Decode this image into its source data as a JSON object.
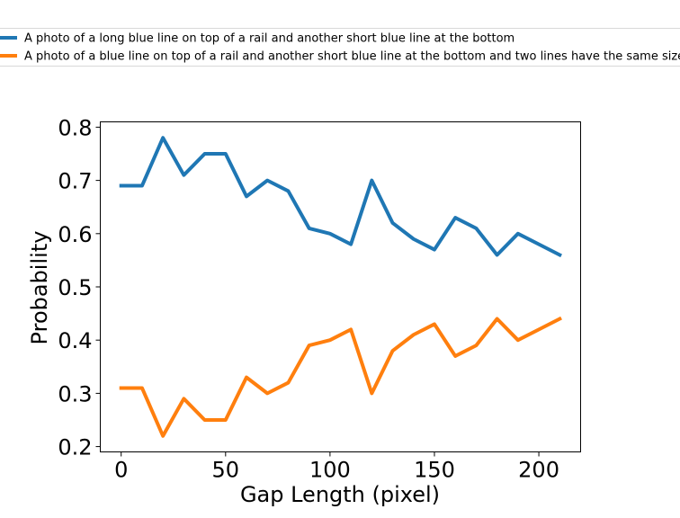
{
  "chart_data": {
    "type": "line",
    "xlabel": "Gap Length (pixel)",
    "ylabel": "Probability",
    "xlim": [
      -10,
      220
    ],
    "ylim": [
      0.19,
      0.81
    ],
    "xticks": [
      "0",
      "50",
      "100",
      "150",
      "200"
    ],
    "yticks": [
      "0.2",
      "0.3",
      "0.4",
      "0.5",
      "0.6",
      "0.7",
      "0.8"
    ],
    "grid": false,
    "legend_position": "top",
    "x": [
      0,
      10,
      20,
      30,
      40,
      50,
      60,
      70,
      80,
      90,
      100,
      110,
      120,
      130,
      140,
      150,
      160,
      170,
      180,
      190,
      200,
      210
    ],
    "series": [
      {
        "name": "A photo of a long blue line on top of a rail and another short blue line at the bottom",
        "color": "#1f77b4",
        "values": [
          0.69,
          0.69,
          0.78,
          0.71,
          0.75,
          0.75,
          0.67,
          0.7,
          0.68,
          0.61,
          0.6,
          0.58,
          0.7,
          0.62,
          0.59,
          0.57,
          0.63,
          0.61,
          0.56,
          0.6,
          0.58,
          0.56
        ]
      },
      {
        "name": "A photo of a blue line on top of a rail and another short blue line at the bottom and two lines have the same size",
        "color": "#ff7f0e",
        "values": [
          0.31,
          0.31,
          0.22,
          0.29,
          0.25,
          0.25,
          0.33,
          0.3,
          0.32,
          0.39,
          0.4,
          0.42,
          0.3,
          0.38,
          0.41,
          0.43,
          0.37,
          0.39,
          0.44,
          0.4,
          0.42,
          0.44
        ]
      }
    ]
  }
}
